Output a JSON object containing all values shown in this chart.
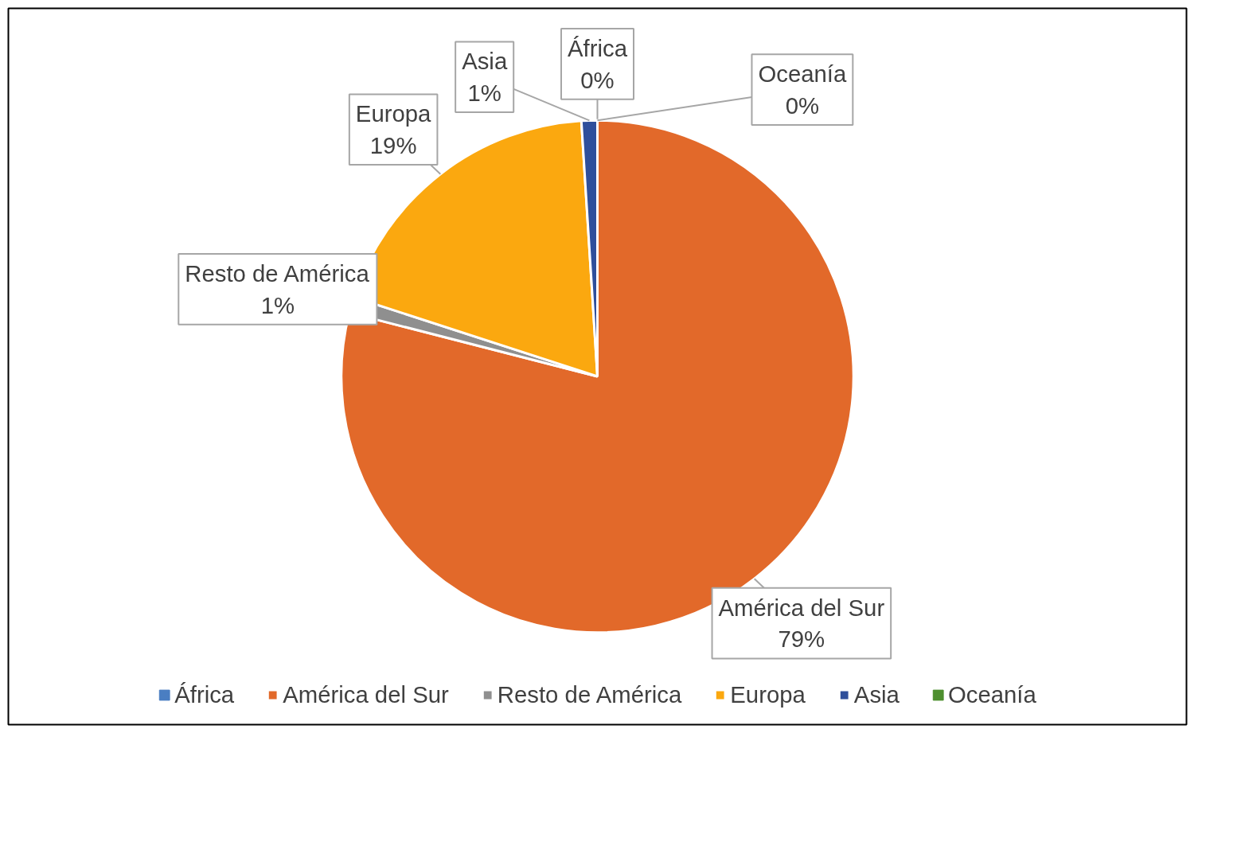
{
  "chart_data": {
    "type": "pie",
    "categories": [
      "África",
      "América del Sur",
      "Resto de América",
      "Europa",
      "Asia",
      "Oceanía"
    ],
    "values": [
      0,
      79,
      1,
      19,
      1,
      0
    ],
    "colors": [
      "#4a7ec2",
      "#e2692a",
      "#8f8f8f",
      "#fba80f",
      "#2f4f9b",
      "#4e8f2f"
    ],
    "value_labels": [
      "0%",
      "79%",
      "1%",
      "19%",
      "1%",
      "0%"
    ],
    "legend": "bottom"
  }
}
